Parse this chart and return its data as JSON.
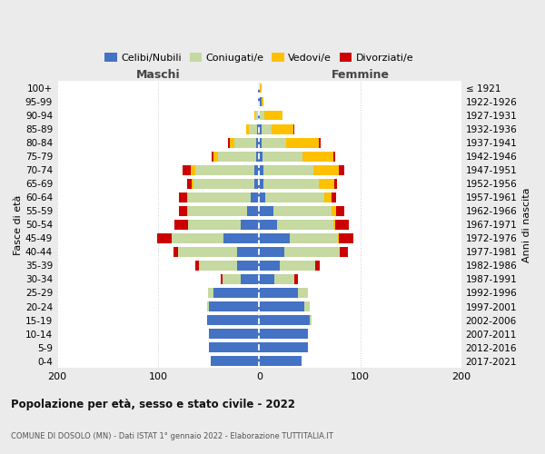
{
  "age_groups": [
    "0-4",
    "5-9",
    "10-14",
    "15-19",
    "20-24",
    "25-29",
    "30-34",
    "35-39",
    "40-44",
    "45-49",
    "50-54",
    "55-59",
    "60-64",
    "65-69",
    "70-74",
    "75-79",
    "80-84",
    "85-89",
    "90-94",
    "95-99",
    "100+"
  ],
  "birth_years": [
    "2017-2021",
    "2012-2016",
    "2007-2011",
    "2002-2006",
    "1997-2001",
    "1992-1996",
    "1987-1991",
    "1982-1986",
    "1977-1981",
    "1972-1976",
    "1967-1971",
    "1962-1966",
    "1957-1961",
    "1952-1956",
    "1947-1951",
    "1942-1946",
    "1937-1941",
    "1932-1936",
    "1927-1931",
    "1922-1926",
    "≤ 1921"
  ],
  "colors": {
    "celibi": "#4472c4",
    "coniugati": "#c5d9a0",
    "vedovi": "#ffc000",
    "divorziati": "#cc0000"
  },
  "males": {
    "celibi": [
      48,
      50,
      50,
      52,
      50,
      45,
      18,
      22,
      22,
      35,
      18,
      12,
      8,
      5,
      5,
      3,
      3,
      2,
      1,
      1,
      1
    ],
    "coniugati": [
      0,
      0,
      0,
      0,
      2,
      6,
      18,
      38,
      58,
      52,
      52,
      58,
      62,
      60,
      58,
      38,
      22,
      8,
      3,
      0,
      0
    ],
    "vedovi": [
      0,
      0,
      0,
      0,
      0,
      0,
      0,
      0,
      0,
      0,
      0,
      1,
      1,
      2,
      5,
      4,
      4,
      3,
      1,
      0,
      0
    ],
    "divorziati": [
      0,
      0,
      0,
      0,
      0,
      0,
      2,
      3,
      5,
      14,
      14,
      8,
      8,
      4,
      8,
      2,
      2,
      0,
      0,
      0,
      0
    ]
  },
  "females": {
    "celibi": [
      42,
      48,
      48,
      50,
      45,
      38,
      15,
      20,
      25,
      30,
      18,
      14,
      6,
      4,
      4,
      3,
      2,
      2,
      1,
      2,
      1
    ],
    "coniugati": [
      0,
      0,
      0,
      2,
      5,
      10,
      20,
      35,
      55,
      48,
      55,
      58,
      58,
      55,
      50,
      40,
      25,
      10,
      4,
      0,
      0
    ],
    "vedovi": [
      0,
      0,
      0,
      0,
      0,
      0,
      0,
      0,
      0,
      1,
      2,
      4,
      8,
      15,
      25,
      30,
      32,
      22,
      18,
      2,
      1
    ],
    "divorziati": [
      0,
      0,
      0,
      0,
      0,
      0,
      3,
      5,
      8,
      14,
      14,
      8,
      4,
      3,
      5,
      2,
      2,
      1,
      0,
      0,
      0
    ]
  },
  "title": "Popolazione per età, sesso e stato civile - 2022",
  "subtitle": "COMUNE DI DOSOLO (MN) - Dati ISTAT 1° gennaio 2022 - Elaborazione TUTTITALIA.IT",
  "label_maschi": "Maschi",
  "label_femmine": "Femmine",
  "ylabel_left": "Fasce di età",
  "ylabel_right": "Anni di nascita",
  "xlim": 200,
  "legend_labels": [
    "Celibi/Nubili",
    "Coniugati/e",
    "Vedovi/e",
    "Divorziati/e"
  ],
  "bg_color": "#ebebeb",
  "plot_bg": "#ffffff"
}
